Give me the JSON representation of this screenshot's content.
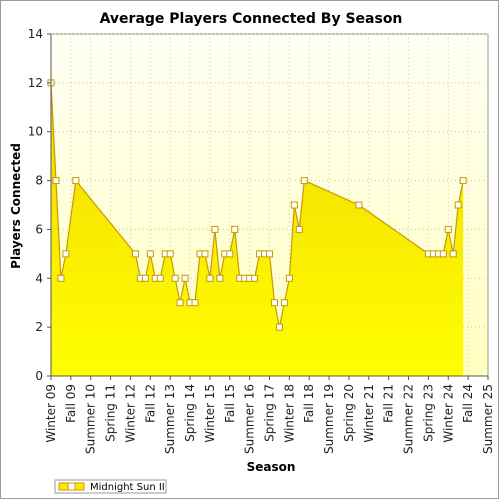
{
  "chart_data": {
    "type": "area",
    "title": "Average Players Connected By Season",
    "xlabel": "Season",
    "ylabel": "Players Connected",
    "ylim": [
      0,
      14
    ],
    "yticks": [
      0,
      2,
      4,
      6,
      8,
      10,
      12,
      14
    ],
    "grid": true,
    "legend_position": "bottom-left",
    "colors": {
      "area_top": "#f5e400",
      "area_bottom": "#ffff00",
      "line": "#c89a00",
      "marker_fill": "#ffffff",
      "plot_bg_top": "#fffff5",
      "plot_bg_bottom": "#ffffc8"
    },
    "x_labels": [
      "Winter 09",
      "Fall 09",
      "Summer 10",
      "Spring 11",
      "Winter 12",
      "Fall 12",
      "Summer 13",
      "Spring 14",
      "Winter 15",
      "Fall 15",
      "Summer 16",
      "Spring 17",
      "Winter 18",
      "Fall 18",
      "Summer 19",
      "Spring 20",
      "Winter 21",
      "Fall 21",
      "Summer 22",
      "Spring 23",
      "Winter 24",
      "Fall 24",
      "Summer 25"
    ],
    "x_label_positions": [
      0,
      4,
      8,
      12,
      16,
      20,
      24,
      28,
      32,
      36,
      40,
      44,
      48,
      52,
      56,
      60,
      64,
      68,
      72,
      76,
      80,
      84,
      88
    ],
    "x_max": 88,
    "series": [
      {
        "name": "Midnight Sun II",
        "points": [
          [
            0,
            12
          ],
          [
            1,
            8
          ],
          [
            2,
            4
          ],
          [
            3,
            5
          ],
          [
            5,
            8
          ],
          [
            17,
            5
          ],
          [
            18,
            4
          ],
          [
            19,
            4
          ],
          [
            20,
            5
          ],
          [
            21,
            4
          ],
          [
            22,
            4
          ],
          [
            23,
            5
          ],
          [
            24,
            5
          ],
          [
            25,
            4
          ],
          [
            26,
            3
          ],
          [
            27,
            4
          ],
          [
            28,
            3
          ],
          [
            29,
            3
          ],
          [
            30,
            5
          ],
          [
            31,
            5
          ],
          [
            32,
            4
          ],
          [
            33,
            6
          ],
          [
            34,
            4
          ],
          [
            35,
            5
          ],
          [
            36,
            5
          ],
          [
            37,
            6
          ],
          [
            38,
            4
          ],
          [
            39,
            4
          ],
          [
            40,
            4
          ],
          [
            41,
            4
          ],
          [
            42,
            5
          ],
          [
            43,
            5
          ],
          [
            44,
            5
          ],
          [
            45,
            3
          ],
          [
            46,
            2
          ],
          [
            47,
            3
          ],
          [
            48,
            4
          ],
          [
            49,
            7
          ],
          [
            50,
            6
          ],
          [
            51,
            8
          ],
          [
            62,
            7
          ],
          [
            76,
            5
          ],
          [
            77,
            5
          ],
          [
            78,
            5
          ],
          [
            79,
            5
          ],
          [
            80,
            6
          ],
          [
            81,
            5
          ],
          [
            82,
            7
          ],
          [
            83,
            8
          ]
        ]
      }
    ]
  }
}
